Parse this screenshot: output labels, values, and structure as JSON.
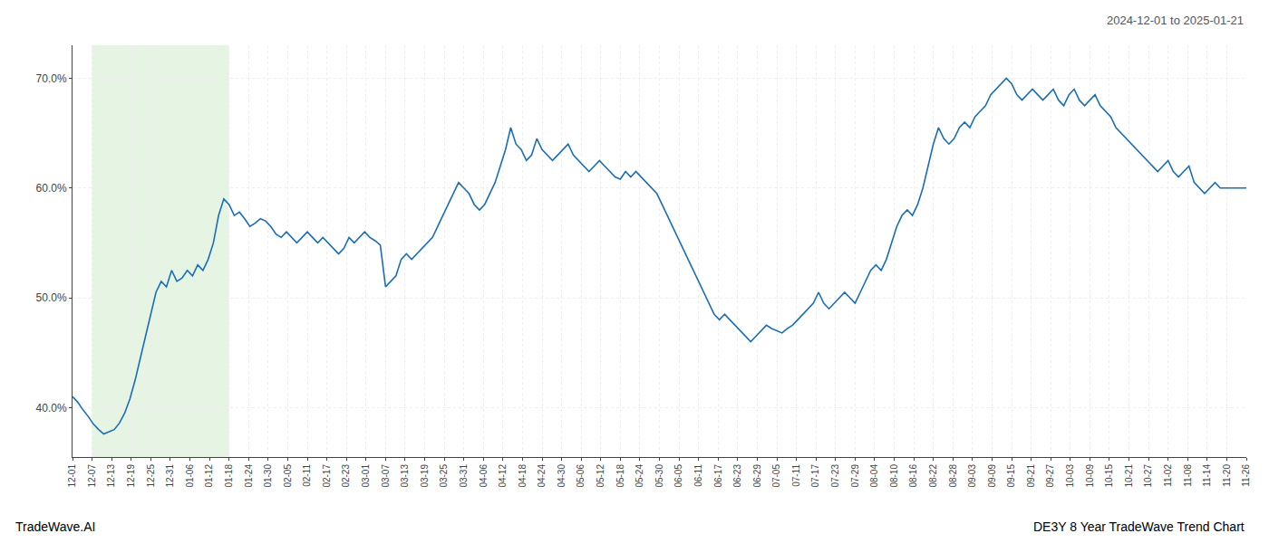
{
  "chart_data": {
    "type": "line",
    "title": "2024-12-01 to 2025-01-21",
    "annotations": [
      "TradeWave.AI",
      "DE3Y 8 Year TradeWave Trend Chart"
    ],
    "color": "#1a6eb5",
    "grid": true,
    "shade": {
      "from": "12-07",
      "to": "01-18",
      "color": "#c8e6c4"
    },
    "xlim": [
      0,
      225
    ],
    "xticks": [
      {
        "value": 0,
        "label": "12-01"
      },
      {
        "value": 3.75,
        "label": "12-07"
      },
      {
        "value": 7.5,
        "label": "12-13"
      },
      {
        "value": 11.25,
        "label": "12-19"
      },
      {
        "value": 15,
        "label": "12-25"
      },
      {
        "value": 18.75,
        "label": "12-31"
      },
      {
        "value": 22.5,
        "label": "01-06"
      },
      {
        "value": 26.25,
        "label": "01-12"
      },
      {
        "value": 30,
        "label": "01-18"
      },
      {
        "value": 33.75,
        "label": "01-24"
      },
      {
        "value": 37.5,
        "label": "01-30"
      },
      {
        "value": 41.25,
        "label": "02-05"
      },
      {
        "value": 45,
        "label": "02-11"
      },
      {
        "value": 48.75,
        "label": "02-17"
      },
      {
        "value": 52.5,
        "label": "02-23"
      },
      {
        "value": 56.25,
        "label": "03-01"
      },
      {
        "value": 60,
        "label": "03-07"
      },
      {
        "value": 63.75,
        "label": "03-13"
      },
      {
        "value": 67.5,
        "label": "03-19"
      },
      {
        "value": 71.25,
        "label": "03-25"
      },
      {
        "value": 75,
        "label": "03-31"
      },
      {
        "value": 78.75,
        "label": "04-06"
      },
      {
        "value": 82.5,
        "label": "04-12"
      },
      {
        "value": 86.25,
        "label": "04-18"
      },
      {
        "value": 90,
        "label": "04-24"
      },
      {
        "value": 93.75,
        "label": "04-30"
      },
      {
        "value": 97.5,
        "label": "05-06"
      },
      {
        "value": 101.25,
        "label": "05-12"
      },
      {
        "value": 105,
        "label": "05-18"
      },
      {
        "value": 108.75,
        "label": "05-24"
      },
      {
        "value": 112.5,
        "label": "05-30"
      },
      {
        "value": 116.25,
        "label": "06-05"
      },
      {
        "value": 120,
        "label": "06-11"
      },
      {
        "value": 123.75,
        "label": "06-17"
      },
      {
        "value": 127.5,
        "label": "06-23"
      },
      {
        "value": 131.25,
        "label": "06-29"
      },
      {
        "value": 135,
        "label": "07-05"
      },
      {
        "value": 138.75,
        "label": "07-11"
      },
      {
        "value": 142.5,
        "label": "07-17"
      },
      {
        "value": 146.25,
        "label": "07-23"
      },
      {
        "value": 150,
        "label": "07-29"
      },
      {
        "value": 153.75,
        "label": "08-04"
      },
      {
        "value": 157.5,
        "label": "08-10"
      },
      {
        "value": 161.25,
        "label": "08-16"
      },
      {
        "value": 165,
        "label": "08-22"
      },
      {
        "value": 168.75,
        "label": "08-28"
      },
      {
        "value": 172.5,
        "label": "09-03"
      },
      {
        "value": 176.25,
        "label": "09-09"
      },
      {
        "value": 180,
        "label": "09-15"
      },
      {
        "value": 183.75,
        "label": "09-21"
      },
      {
        "value": 187.5,
        "label": "09-27"
      },
      {
        "value": 191.25,
        "label": "10-03"
      },
      {
        "value": 195,
        "label": "10-09"
      },
      {
        "value": 198.75,
        "label": "10-15"
      },
      {
        "value": 202.5,
        "label": "10-21"
      },
      {
        "value": 206.25,
        "label": "10-27"
      },
      {
        "value": 210,
        "label": "11-02"
      },
      {
        "value": 213.75,
        "label": "11-08"
      },
      {
        "value": 217.5,
        "label": "11-14"
      },
      {
        "value": 221.25,
        "label": "11-20"
      },
      {
        "value": 225,
        "label": "11-26"
      }
    ],
    "ylim": [
      35.5,
      73.0
    ],
    "yticks": [
      {
        "value": 40.0,
        "label": "40.0%"
      },
      {
        "value": 50.0,
        "label": "50.0%"
      },
      {
        "value": 60.0,
        "label": "60.0%"
      },
      {
        "value": 70.0,
        "label": "70.0%"
      }
    ],
    "values": [
      41.0,
      40.5,
      39.8,
      39.2,
      38.5,
      38.0,
      37.6,
      37.8,
      38.0,
      38.6,
      39.5,
      40.8,
      42.5,
      44.5,
      46.5,
      48.5,
      50.5,
      51.5,
      51.0,
      52.5,
      51.5,
      51.8,
      52.5,
      52.0,
      53.0,
      52.5,
      53.5,
      55.0,
      57.5,
      59.0,
      58.5,
      57.5,
      57.8,
      57.2,
      56.5,
      56.8,
      57.2,
      57.0,
      56.5,
      55.8,
      55.5,
      56.0,
      55.5,
      55.0,
      55.5,
      56.0,
      55.5,
      55.0,
      55.5,
      55.0,
      54.5,
      54.0,
      54.5,
      55.5,
      55.0,
      55.5,
      56.0,
      55.5,
      55.2,
      54.8,
      51.0,
      51.5,
      52.0,
      53.5,
      54.0,
      53.5,
      54.0,
      54.5,
      55.0,
      55.5,
      56.5,
      57.5,
      58.5,
      59.5,
      60.5,
      60.0,
      59.5,
      58.5,
      58.0,
      58.5,
      59.5,
      60.5,
      62.0,
      63.5,
      65.5,
      64.0,
      63.5,
      62.5,
      63.0,
      64.5,
      63.5,
      63.0,
      62.5,
      63.0,
      63.5,
      64.0,
      63.0,
      62.5,
      62.0,
      61.5,
      62.0,
      62.5,
      62.0,
      61.5,
      61.0,
      60.8,
      61.5,
      61.0,
      61.5,
      61.0,
      60.5,
      60.0,
      59.5,
      58.5,
      57.5,
      56.5,
      55.5,
      54.5,
      53.5,
      52.5,
      51.5,
      50.5,
      49.5,
      48.5,
      48.0,
      48.5,
      48.0,
      47.5,
      47.0,
      46.5,
      46.0,
      46.5,
      47.0,
      47.5,
      47.2,
      47.0,
      46.8,
      47.2,
      47.5,
      48.0,
      48.5,
      49.0,
      49.5,
      50.5,
      49.5,
      49.0,
      49.5,
      50.0,
      50.5,
      50.0,
      49.5,
      50.5,
      51.5,
      52.5,
      53.0,
      52.5,
      53.5,
      55.0,
      56.5,
      57.5,
      58.0,
      57.5,
      58.5,
      60.0,
      62.0,
      64.0,
      65.5,
      64.5,
      64.0,
      64.5,
      65.5,
      66.0,
      65.5,
      66.5,
      67.0,
      67.5,
      68.5,
      69.0,
      69.5,
      70.0,
      69.5,
      68.5,
      68.0,
      68.5,
      69.0,
      68.5,
      68.0,
      68.5,
      69.0,
      68.0,
      67.5,
      68.5,
      69.0,
      68.0,
      67.5,
      68.0,
      68.5,
      67.5,
      67.0,
      66.5,
      65.5,
      65.0,
      64.5,
      64.0,
      63.5,
      63.0,
      62.5,
      62.0,
      61.5,
      62.0,
      62.5,
      61.5,
      61.0,
      61.5,
      62.0,
      60.5,
      60.0,
      59.5,
      60.0,
      60.5,
      60.0,
      60.0,
      60.0,
      60.0,
      60.0,
      60.0
    ]
  }
}
